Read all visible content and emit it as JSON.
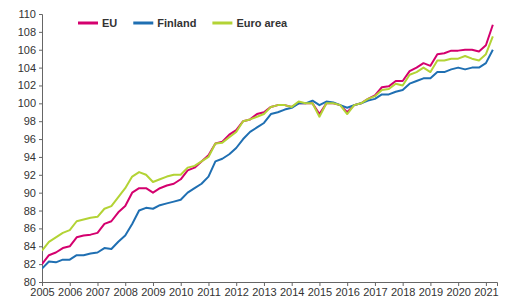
{
  "chart_data": {
    "type": "line",
    "x": [
      2005,
      2005.25,
      2005.5,
      2005.75,
      2006,
      2006.25,
      2006.5,
      2006.75,
      2007,
      2007.25,
      2007.5,
      2007.75,
      2008,
      2008.25,
      2008.5,
      2008.75,
      2009,
      2009.25,
      2009.5,
      2009.75,
      2010,
      2010.25,
      2010.5,
      2010.75,
      2011,
      2011.25,
      2011.5,
      2011.75,
      2012,
      2012.25,
      2012.5,
      2012.75,
      2013,
      2013.25,
      2013.5,
      2013.75,
      2014,
      2014.25,
      2014.5,
      2014.75,
      2015,
      2015.25,
      2015.5,
      2015.75,
      2016,
      2016.25,
      2016.5,
      2016.75,
      2017,
      2017.25,
      2017.5,
      2017.75,
      2018,
      2018.25,
      2018.5,
      2018.75,
      2019,
      2019.25,
      2019.5,
      2019.75,
      2020,
      2020.25,
      2020.5,
      2020.75,
      2021,
      2021.25
    ],
    "series": [
      {
        "name": "EU",
        "color": "#d4006e",
        "values": [
          82.0,
          83.0,
          83.3,
          83.8,
          84.0,
          85.0,
          85.2,
          85.3,
          85.5,
          86.5,
          86.8,
          87.8,
          88.5,
          90.0,
          90.5,
          90.5,
          90.0,
          90.5,
          90.8,
          91.0,
          91.5,
          92.5,
          92.8,
          93.5,
          94.2,
          95.5,
          95.7,
          96.5,
          97.0,
          98.0,
          98.2,
          98.8,
          99.0,
          99.6,
          99.8,
          99.8,
          99.6,
          100.0,
          100.0,
          100.0,
          98.8,
          100.0,
          100.0,
          99.8,
          99.0,
          99.8,
          100.0,
          100.5,
          100.9,
          101.8,
          101.9,
          102.5,
          102.5,
          103.6,
          104.0,
          104.5,
          104.2,
          105.5,
          105.6,
          105.9,
          105.9,
          106.0,
          106.0,
          105.8,
          106.5,
          108.8
        ]
      },
      {
        "name": "Finland",
        "color": "#1f6fb2",
        "values": [
          81.5,
          82.3,
          82.2,
          82.5,
          82.5,
          83.0,
          83.0,
          83.2,
          83.3,
          83.8,
          83.7,
          84.5,
          85.2,
          86.5,
          88.0,
          88.3,
          88.2,
          88.6,
          88.8,
          89.0,
          89.2,
          90.0,
          90.5,
          91.0,
          91.8,
          93.5,
          93.8,
          94.3,
          95.0,
          96.0,
          96.8,
          97.3,
          97.8,
          98.8,
          99.0,
          99.3,
          99.5,
          100.0,
          100.0,
          100.3,
          99.8,
          100.2,
          100.1,
          99.8,
          99.5,
          99.8,
          100.0,
          100.3,
          100.5,
          101.0,
          101.0,
          101.3,
          101.5,
          102.2,
          102.5,
          102.8,
          102.8,
          103.5,
          103.5,
          103.8,
          104.0,
          103.8,
          104.0,
          104.0,
          104.5,
          106.0
        ]
      },
      {
        "name": "Euro area",
        "color": "#b3d335",
        "values": [
          83.5,
          84.5,
          85.0,
          85.5,
          85.8,
          86.8,
          87.0,
          87.2,
          87.3,
          88.2,
          88.5,
          89.5,
          90.5,
          91.8,
          92.3,
          92.0,
          91.2,
          91.5,
          91.8,
          92.0,
          92.0,
          92.8,
          93.0,
          93.5,
          94.0,
          95.5,
          95.6,
          96.2,
          96.8,
          98.0,
          98.2,
          98.5,
          98.8,
          99.6,
          99.8,
          99.8,
          99.6,
          100.2,
          100.0,
          100.0,
          98.5,
          100.0,
          100.0,
          99.8,
          98.8,
          99.8,
          100.0,
          100.5,
          100.8,
          101.5,
          101.6,
          102.2,
          102.0,
          103.2,
          103.5,
          104.0,
          103.5,
          104.8,
          104.8,
          105.0,
          105.0,
          105.3,
          105.0,
          104.8,
          105.5,
          107.5
        ]
      }
    ],
    "xlim": [
      2005,
      2021.4
    ],
    "xticks": [
      2005,
      2006,
      2007,
      2008,
      2009,
      2010,
      2011,
      2012,
      2013,
      2014,
      2015,
      2016,
      2017,
      2018,
      2019,
      2020,
      2021
    ],
    "ylim": [
      80,
      110
    ],
    "yticks": [
      80,
      82,
      84,
      86,
      88,
      90,
      92,
      94,
      96,
      98,
      100,
      102,
      104,
      106,
      108,
      110
    ],
    "grid": false,
    "legend": "upper-left"
  }
}
